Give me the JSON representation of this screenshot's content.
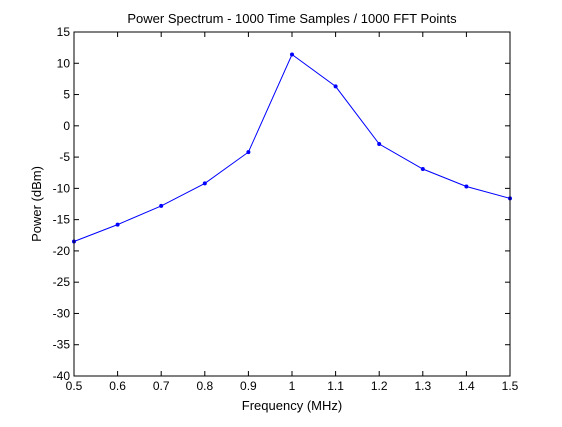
{
  "chart_data": {
    "type": "line",
    "title": "Power Spectrum - 1000 Time Samples / 1000 FFT Points",
    "xlabel": "Frequency (MHz)",
    "ylabel": "Power (dBm)",
    "xlim": [
      0.5,
      1.5
    ],
    "ylim": [
      -40,
      15
    ],
    "xticks": [
      0.5,
      0.6,
      0.7,
      0.8,
      0.9,
      1.0,
      1.1,
      1.2,
      1.3,
      1.4,
      1.5
    ],
    "xtick_labels": [
      "0.5",
      "0.6",
      "0.7",
      "0.8",
      "0.9",
      "1",
      "1.1",
      "1.2",
      "1.3",
      "1.4",
      "1.5"
    ],
    "yticks": [
      15,
      10,
      5,
      0,
      -5,
      -10,
      -15,
      -20,
      -25,
      -30,
      -35,
      -40
    ],
    "ytick_labels": [
      "15",
      "10",
      "5",
      "0",
      "-5",
      "-10",
      "-15",
      "-20",
      "-25",
      "-30",
      "-35",
      "-40"
    ],
    "grid": false,
    "legend": "none",
    "line_color": "#0000ff",
    "series": [
      {
        "x": [
          0.5,
          0.6,
          0.7,
          0.8,
          0.9,
          1.0,
          1.1,
          1.2,
          1.3,
          1.4,
          1.5
        ],
        "values": [
          -18.5,
          -15.8,
          -12.8,
          -9.2,
          -4.2,
          11.4,
          6.3,
          -2.9,
          -6.9,
          -9.7,
          -11.6
        ]
      }
    ]
  }
}
